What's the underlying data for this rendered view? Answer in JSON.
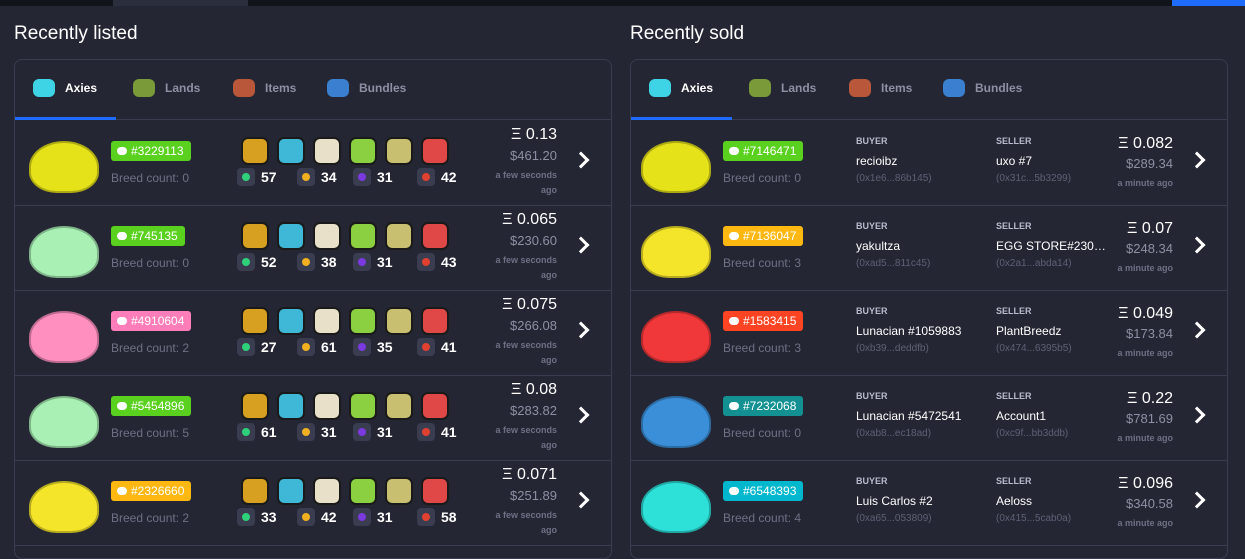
{
  "listed": {
    "title": "Recently listed",
    "tabs": [
      "Axies",
      "Lands",
      "Items",
      "Bundles"
    ],
    "rows": [
      {
        "id": "#3229113",
        "badge_color": "#5bd11f",
        "body_color": "#e6e21a",
        "breed": "Breed count: 0",
        "stats": [
          57,
          34,
          31,
          42
        ],
        "price": "Ξ 0.13",
        "usd": "$461.20",
        "time": "a few seconds ago"
      },
      {
        "id": "#745135",
        "badge_color": "#5bd11f",
        "body_color": "#a8f0b4",
        "breed": "Breed count: 0",
        "stats": [
          52,
          38,
          31,
          43
        ],
        "price": "Ξ 0.065",
        "usd": "$230.60",
        "time": "a few seconds ago"
      },
      {
        "id": "#4910604",
        "badge_color": "#ff7eb9",
        "body_color": "#ff8fbf",
        "breed": "Breed count: 2",
        "stats": [
          27,
          61,
          35,
          41
        ],
        "price": "Ξ 0.075",
        "usd": "$266.08",
        "time": "a few seconds ago"
      },
      {
        "id": "#5454896",
        "badge_color": "#5bd11f",
        "body_color": "#a8f0b4",
        "breed": "Breed count: 5",
        "stats": [
          61,
          31,
          31,
          41
        ],
        "price": "Ξ 0.08",
        "usd": "$283.82",
        "time": "a few seconds ago"
      },
      {
        "id": "#2326660",
        "badge_color": "#ffb812",
        "body_color": "#f5e52a",
        "breed": "Breed count: 2",
        "stats": [
          33,
          42,
          31,
          58
        ],
        "price": "Ξ 0.071",
        "usd": "$251.89",
        "time": "a few seconds ago"
      }
    ]
  },
  "sold": {
    "title": "Recently sold",
    "tabs": [
      "Axies",
      "Lands",
      "Items",
      "Bundles"
    ],
    "buyer_label": "BUYER",
    "seller_label": "SELLER",
    "rows": [
      {
        "id": "#7146471",
        "badge_color": "#5bd11f",
        "body_color": "#e6e21a",
        "breed": "Breed count: 0",
        "buyer": "recioibz",
        "buyer_addr": "(0x1e6...86b145)",
        "seller": "uxo #7",
        "seller_addr": "(0x31c...5b3299)",
        "price": "Ξ 0.082",
        "usd": "$289.34",
        "time": "a minute ago"
      },
      {
        "id": "#7136047",
        "badge_color": "#ffb812",
        "body_color": "#f5e52a",
        "breed": "Breed count: 3",
        "buyer": "yakultza",
        "buyer_addr": "(0xad5...811c45)",
        "seller": "EGG STORE#230…",
        "seller_addr": "(0x2a1...abda14)",
        "price": "Ξ 0.07",
        "usd": "$248.34",
        "time": "a minute ago"
      },
      {
        "id": "#1583415",
        "badge_color": "#ff4423",
        "body_color": "#f0383a",
        "breed": "Breed count: 3",
        "buyer": "Lunacian #1059883",
        "buyer_addr": "(0xb39...deddfb)",
        "seller": "PlantBreedz",
        "seller_addr": "(0x474...6395b5)",
        "price": "Ξ 0.049",
        "usd": "$173.84",
        "time": "a minute ago"
      },
      {
        "id": "#7232068",
        "badge_color": "#129092",
        "body_color": "#3a8fd8",
        "breed": "Breed count: 0",
        "buyer": "Lunacian #5472541",
        "buyer_addr": "(0xab8...ec18ad)",
        "seller": "Account1",
        "seller_addr": "(0xc9f...bb3ddb)",
        "price": "Ξ 0.22",
        "usd": "$781.69",
        "time": "a minute ago"
      },
      {
        "id": "#6548393",
        "badge_color": "#00b8ce",
        "body_color": "#2de0d8",
        "breed": "Breed count: 4",
        "buyer": "Luis Carlos #2",
        "buyer_addr": "(0xa65...053809)",
        "seller": "Aeloss",
        "seller_addr": "(0x415...5cab0a)",
        "price": "Ξ 0.096",
        "usd": "$340.58",
        "time": "a minute ago"
      }
    ]
  }
}
